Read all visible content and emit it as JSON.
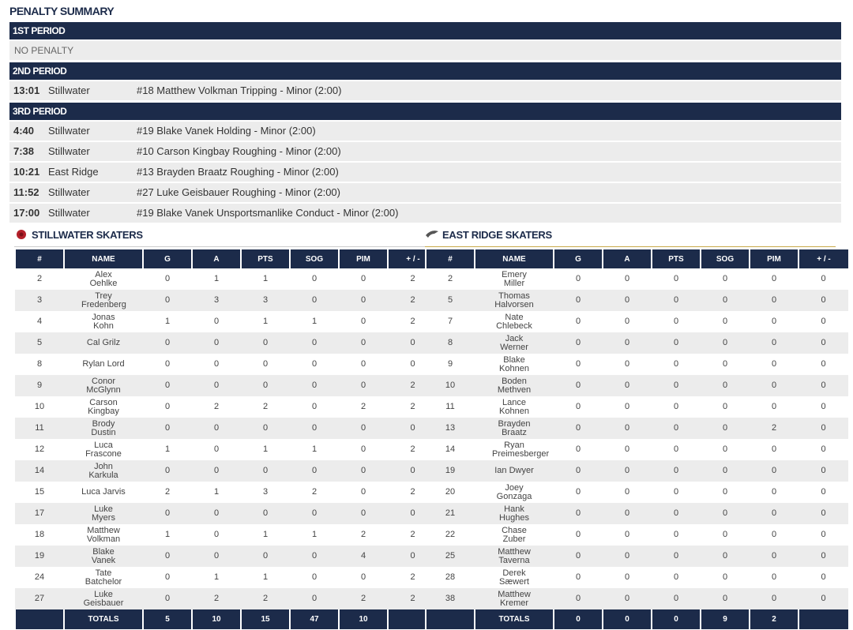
{
  "penalty_summary": {
    "title": "PENALTY SUMMARY",
    "periods": [
      {
        "label": "1ST PERIOD",
        "note": "NO PENALTY"
      },
      {
        "label": "2ND PERIOD",
        "penalties": [
          {
            "time": "13:01",
            "team": "Stillwater",
            "description": "#18 Matthew Volkman Tripping - Minor (2:00)"
          }
        ]
      },
      {
        "label": "3RD PERIOD",
        "penalties": [
          {
            "time": "4:40",
            "team": "Stillwater",
            "description": "#19 Blake Vanek Holding - Minor (2:00)"
          },
          {
            "time": "7:38",
            "team": "Stillwater",
            "description": "#10 Carson Kingbay Roughing - Minor (2:00)"
          },
          {
            "time": "10:21",
            "team": "East Ridge",
            "description": "#13 Brayden Braatz Roughing - Minor (2:00)"
          },
          {
            "time": "11:52",
            "team": "Stillwater",
            "description": "#27 Luke Geisbauer Roughing - Minor (2:00)"
          },
          {
            "time": "17:00",
            "team": "Stillwater",
            "description": "#19 Blake Vanek Unsportsmanlike Conduct - Minor (2:00)"
          }
        ]
      }
    ]
  },
  "skaters": [
    {
      "title": "STILLWATER SKATERS",
      "columns": [
        "#",
        "NAME",
        "G",
        "A",
        "PTS",
        "SOG",
        "PIM",
        "+ / -"
      ],
      "rows": [
        [
          2,
          "Alex Oehlke",
          0,
          1,
          1,
          0,
          0,
          2
        ],
        [
          3,
          "Trey Fredenberg",
          0,
          3,
          3,
          0,
          0,
          2
        ],
        [
          4,
          "Jonas Kohn",
          1,
          0,
          1,
          1,
          0,
          2
        ],
        [
          5,
          "Cal Grilz",
          0,
          0,
          0,
          0,
          0,
          0
        ],
        [
          8,
          "Rylan Lord",
          0,
          0,
          0,
          0,
          0,
          0
        ],
        [
          9,
          "Conor McGlynn",
          0,
          0,
          0,
          0,
          0,
          2
        ],
        [
          10,
          "Carson Kingbay",
          0,
          2,
          2,
          0,
          2,
          2
        ],
        [
          11,
          "Brody Dustin",
          0,
          0,
          0,
          0,
          0,
          0
        ],
        [
          12,
          "Luca Frascone",
          1,
          0,
          1,
          1,
          0,
          2
        ],
        [
          14,
          "John Karkula",
          0,
          0,
          0,
          0,
          0,
          0
        ],
        [
          15,
          "Luca Jarvis",
          2,
          1,
          3,
          2,
          0,
          2
        ],
        [
          17,
          "Luke Myers",
          0,
          0,
          0,
          0,
          0,
          0
        ],
        [
          18,
          "Matthew Volkman",
          1,
          0,
          1,
          1,
          2,
          2
        ],
        [
          19,
          "Blake Vanek",
          0,
          0,
          0,
          0,
          4,
          0
        ],
        [
          24,
          "Tate Batchelor",
          0,
          1,
          1,
          0,
          0,
          2
        ],
        [
          27,
          "Luke Geisbauer",
          0,
          2,
          2,
          0,
          2,
          2
        ]
      ],
      "totals": [
        "TOTALS",
        5,
        10,
        15,
        47,
        10
      ]
    },
    {
      "title": "EAST RIDGE SKATERS",
      "columns": [
        "#",
        "NAME",
        "G",
        "A",
        "PTS",
        "SOG",
        "PIM",
        "+ / -"
      ],
      "rows": [
        [
          2,
          "Emery Miller",
          0,
          0,
          0,
          0,
          0,
          0
        ],
        [
          5,
          "Thomas Halvorsen",
          0,
          0,
          0,
          0,
          0,
          0
        ],
        [
          7,
          "Nate Chlebeck",
          0,
          0,
          0,
          0,
          0,
          0
        ],
        [
          8,
          "Jack Werner",
          0,
          0,
          0,
          0,
          0,
          0
        ],
        [
          9,
          "Blake Kohnen",
          0,
          0,
          0,
          0,
          0,
          0
        ],
        [
          10,
          "Boden Methven",
          0,
          0,
          0,
          0,
          0,
          0
        ],
        [
          11,
          "Lance Kohnen",
          0,
          0,
          0,
          0,
          0,
          0
        ],
        [
          13,
          "Brayden Braatz",
          0,
          0,
          0,
          0,
          2,
          0
        ],
        [
          14,
          "Ryan Preimesberger",
          0,
          0,
          0,
          0,
          0,
          0
        ],
        [
          19,
          "Ian Dwyer",
          0,
          0,
          0,
          0,
          0,
          0
        ],
        [
          20,
          "Joey Gonzaga",
          0,
          0,
          0,
          0,
          0,
          0
        ],
        [
          21,
          "Hank Hughes",
          0,
          0,
          0,
          0,
          0,
          0
        ],
        [
          22,
          "Chase Zuber",
          0,
          0,
          0,
          0,
          0,
          0
        ],
        [
          25,
          "Matthew Taverna",
          0,
          0,
          0,
          0,
          0,
          0
        ],
        [
          28,
          "Derek Sæwert",
          0,
          0,
          0,
          0,
          0,
          0
        ],
        [
          38,
          "Matthew Kremer",
          0,
          0,
          0,
          0,
          0,
          0
        ]
      ],
      "totals": [
        "TOTALS",
        0,
        0,
        0,
        9,
        2
      ]
    }
  ]
}
